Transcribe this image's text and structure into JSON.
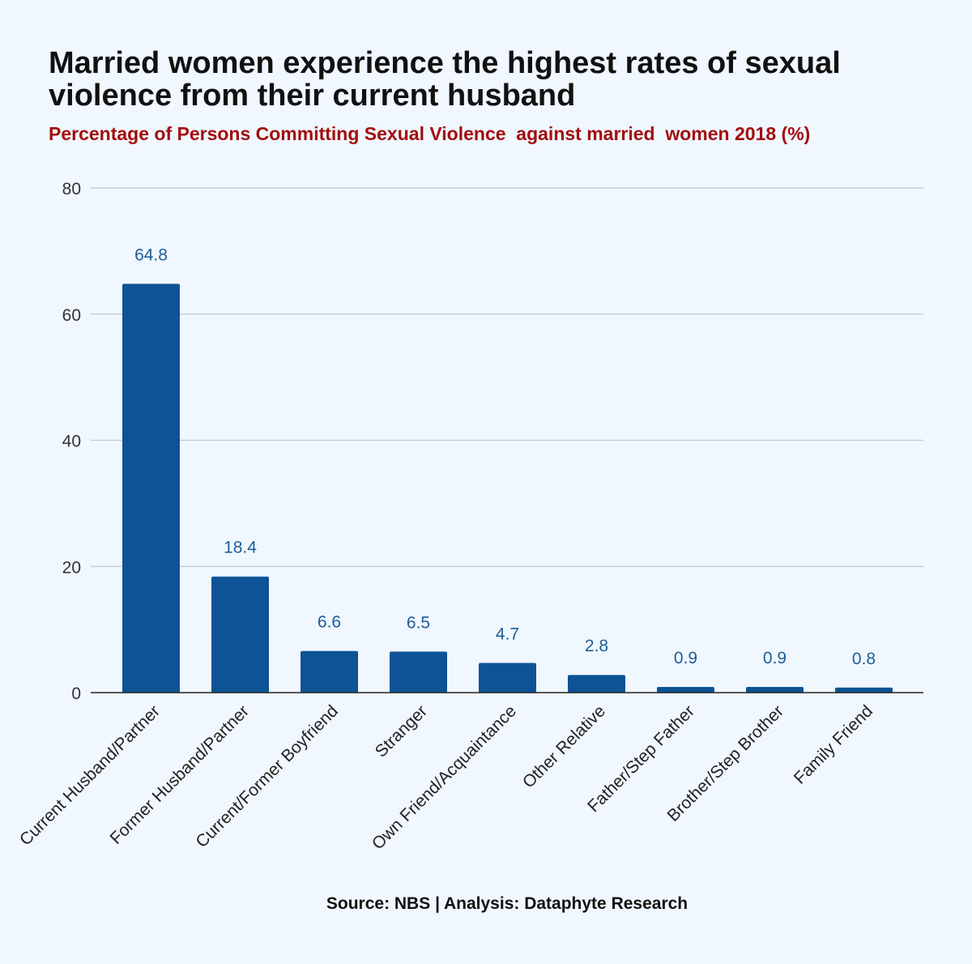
{
  "header": {
    "title": "Married women experience the highest rates of sexual violence from their current husband",
    "subtitle": "Percentage of Persons Committing Sexual Violence  against married  women 2018 (%)"
  },
  "footer": {
    "source": "Source: NBS | Analysis: Dataphyte Research"
  },
  "colors": {
    "bar": "#0d5395",
    "data_label": "#1e5e9a",
    "gridline": "#c4c9cf",
    "axis": "#222222"
  },
  "chart_data": {
    "type": "bar",
    "categories": [
      "Current Husband/Partner",
      "Former Husband/Partner",
      "Current/Former Boyfriend",
      "Stranger",
      "Own Friend/Acquaintance",
      "Other Relative",
      "Father/Step Father",
      "Brother/Step Brother",
      "Family Friend"
    ],
    "values": [
      64.8,
      18.4,
      6.6,
      6.5,
      4.7,
      2.8,
      0.9,
      0.9,
      0.8
    ],
    "data_labels": [
      "64.8",
      "18.4",
      "6.6",
      "6.5",
      "4.7",
      "2.8",
      "0.9",
      "0.9",
      "0.8"
    ],
    "ylim": [
      0,
      80
    ],
    "yticks": [
      0,
      20,
      40,
      60,
      80
    ],
    "grid": true,
    "legend": "none"
  }
}
